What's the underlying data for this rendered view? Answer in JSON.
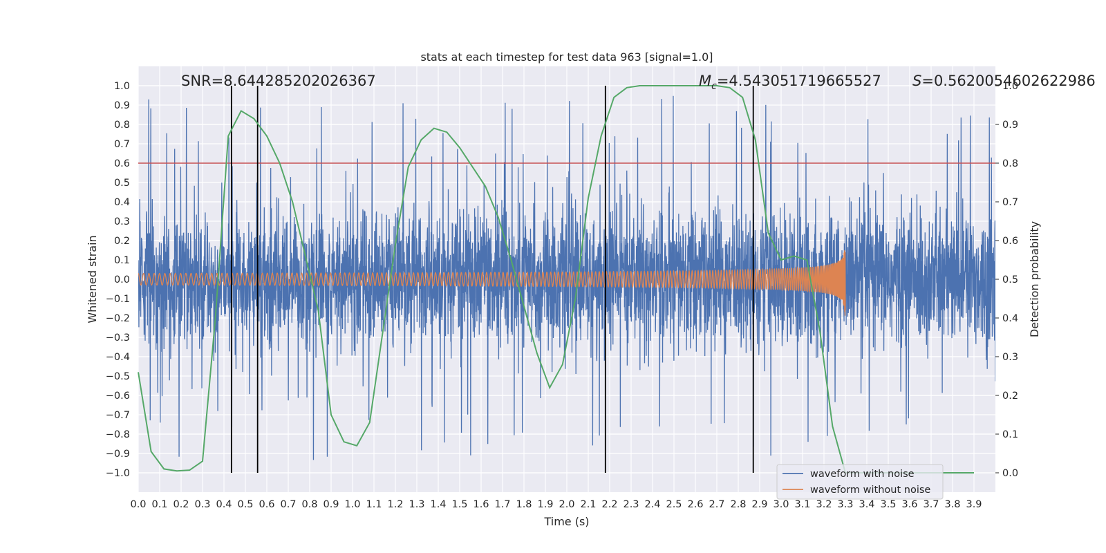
{
  "chart_data": {
    "type": "line",
    "title": "stats at each timestep for test data 963 [signal=1.0]",
    "xlabel": "Time (s)",
    "ylabel": "Whitened strain",
    "y2label": "Detection probability",
    "xlim": [
      0.0,
      4.0
    ],
    "ylim": [
      -1.1,
      1.1
    ],
    "y2lim": [
      -0.05,
      1.05
    ],
    "x_ticks": [
      0.0,
      0.1,
      0.2,
      0.3,
      0.4,
      0.5,
      0.6,
      0.7,
      0.8,
      0.9,
      1.0,
      1.1,
      1.2,
      1.3,
      1.4,
      1.5,
      1.6,
      1.7,
      1.8,
      1.9,
      2.0,
      2.1,
      2.2,
      2.3,
      2.4,
      2.5,
      2.6,
      2.7,
      2.8,
      2.9,
      3.0,
      3.1,
      3.2,
      3.3,
      3.4,
      3.5,
      3.6,
      3.7,
      3.8,
      3.9
    ],
    "x_tick_labels": [
      "0.0",
      "0.1",
      "0.2",
      "0.3",
      "0.4",
      "0.5",
      "0.6",
      "0.7",
      "0.8",
      "0.9",
      "1.0",
      "1.1",
      "1.2",
      "1.3",
      "1.4",
      "1.5",
      "1.6",
      "1.7",
      "1.8",
      "1.9",
      "2.0",
      "2.1",
      "2.2",
      "2.3",
      "2.4",
      "2.5",
      "2.6",
      "2.7",
      "2.8",
      "2.9",
      "3.0",
      "3.1",
      "3.2",
      "3.3",
      "3.4",
      "3.5",
      "3.6",
      "3.7",
      "3.8",
      "3.9"
    ],
    "y_ticks": [
      -1.0,
      -0.9,
      -0.8,
      -0.7,
      -0.6,
      -0.5,
      -0.4,
      -0.3,
      -0.2,
      -0.1,
      0.0,
      0.1,
      0.2,
      0.3,
      0.4,
      0.5,
      0.6,
      0.7,
      0.8,
      0.9,
      1.0
    ],
    "y_tick_labels": [
      "−1.0",
      "−0.9",
      "−0.8",
      "−0.7",
      "−0.6",
      "−0.5",
      "−0.4",
      "−0.3",
      "−0.2",
      "−0.1",
      "0.0",
      "0.1",
      "0.2",
      "0.3",
      "0.4",
      "0.5",
      "0.6",
      "0.7",
      "0.8",
      "0.9",
      "1.0"
    ],
    "y2_ticks": [
      0.0,
      0.1,
      0.2,
      0.3,
      0.4,
      0.5,
      0.6,
      0.7,
      0.8,
      0.9,
      1.0
    ],
    "y2_tick_labels": [
      "0.0",
      "0.1",
      "0.2",
      "0.3",
      "0.4",
      "0.5",
      "0.6",
      "0.7",
      "0.8",
      "0.9",
      "1.0"
    ],
    "grid": true,
    "legend_position": "bottom-right",
    "annotations": {
      "snr": "SNR=8.644285202026367",
      "mc_symbol": "M",
      "mc_subscript": "c",
      "mc_value": "=4.543051719665527",
      "s_symbol": "S",
      "s_value": "=0.5620054602622986"
    },
    "series": [
      {
        "name": "waveform with noise",
        "color": "#4c72b0",
        "kind": "noise",
        "x_range": [
          0.0,
          4.0
        ],
        "amplitude_typical": 0.35,
        "amplitude_peak": 1.0
      },
      {
        "name": "waveform without noise",
        "color": "#dd8452",
        "kind": "chirp",
        "x_range": [
          0.0,
          3.3
        ],
        "merger_time": 3.3,
        "amplitude_start": 0.03,
        "amplitude_peak": 0.22,
        "frequency_start": 40
      }
    ],
    "detection_probability": {
      "color": "#55a868",
      "axis": "right",
      "x": [
        0.0,
        0.06,
        0.12,
        0.18,
        0.24,
        0.3,
        0.36,
        0.42,
        0.48,
        0.54,
        0.6,
        0.66,
        0.72,
        0.78,
        0.84,
        0.9,
        0.96,
        1.02,
        1.08,
        1.14,
        1.2,
        1.26,
        1.32,
        1.38,
        1.44,
        1.5,
        1.56,
        1.62,
        1.68,
        1.74,
        1.8,
        1.86,
        1.92,
        1.98,
        2.04,
        2.1,
        2.16,
        2.22,
        2.28,
        2.34,
        2.4,
        2.46,
        2.52,
        2.58,
        2.64,
        2.7,
        2.76,
        2.82,
        2.88,
        2.94,
        3.0,
        3.06,
        3.12,
        3.18,
        3.24,
        3.3,
        3.36,
        3.42,
        3.48,
        3.54,
        3.6,
        3.66,
        3.72,
        3.78,
        3.84,
        3.9
      ],
      "y": [
        0.26,
        0.055,
        0.01,
        0.005,
        0.007,
        0.03,
        0.4,
        0.87,
        0.935,
        0.915,
        0.87,
        0.8,
        0.7,
        0.56,
        0.42,
        0.15,
        0.08,
        0.07,
        0.13,
        0.36,
        0.59,
        0.79,
        0.86,
        0.89,
        0.88,
        0.84,
        0.79,
        0.74,
        0.66,
        0.55,
        0.43,
        0.31,
        0.22,
        0.28,
        0.45,
        0.71,
        0.87,
        0.97,
        0.995,
        1.0,
        1.0,
        1.0,
        1.0,
        1.0,
        1.0,
        1.0,
        0.995,
        0.97,
        0.86,
        0.62,
        0.55,
        0.56,
        0.55,
        0.37,
        0.12,
        0.0,
        0.0,
        0.0,
        0.0,
        0.0,
        0.0,
        0.0,
        0.0,
        0.0,
        0.0,
        0.0
      ]
    },
    "threshold_line": {
      "value": 0.8,
      "color": "#c44e52"
    },
    "vertical_lines": {
      "x": [
        0.435,
        0.557,
        2.18,
        2.87
      ],
      "ymin": -1.0,
      "ymax": 1.0,
      "color": "#000000"
    }
  }
}
